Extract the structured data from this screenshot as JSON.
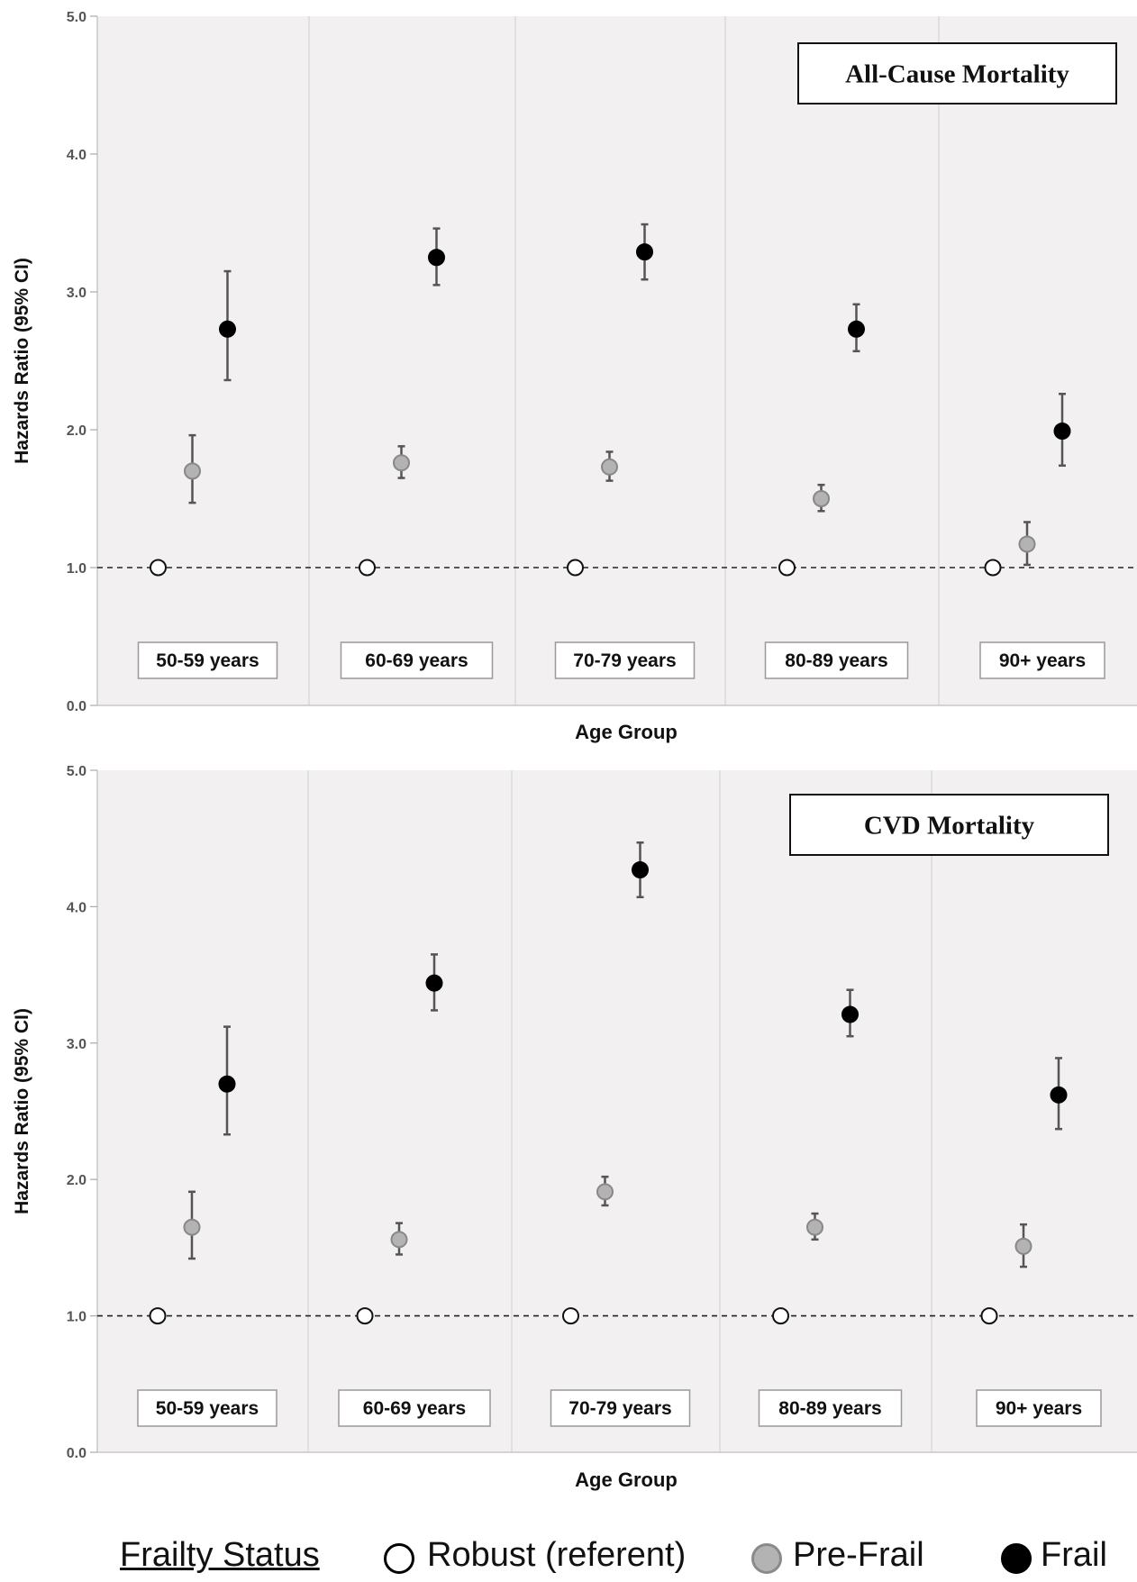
{
  "colors": {
    "plot_bg": "#f2f0f0",
    "robust": "#ffffff",
    "prefrail": "#b3b3b3",
    "frail": "#000000",
    "whisker": "#555555",
    "gridline": "#d6d6d6",
    "axis_text": "#555555"
  },
  "chart_data": [
    {
      "type": "scatter",
      "title": "All-Cause Mortality",
      "xlabel": "Age Group",
      "ylabel": "Hazards Ratio (95% CI)",
      "ylim": [
        0,
        5
      ],
      "yticks": [
        "0.0",
        "1.0",
        "2.0",
        "3.0",
        "4.0",
        "5.0"
      ],
      "reference_line": 1.0,
      "categories": [
        "50-59 years",
        "60-69 years",
        "70-79 years",
        "80-89 years",
        "90+ years"
      ],
      "series": [
        {
          "name": "Robust (referent)",
          "values": [
            1.0,
            1.0,
            1.0,
            1.0,
            1.0
          ],
          "lower": [
            1.0,
            1.0,
            1.0,
            1.0,
            1.0
          ],
          "upper": [
            1.0,
            1.0,
            1.0,
            1.0,
            1.0
          ]
        },
        {
          "name": "Pre-Frail",
          "values": [
            1.7,
            1.76,
            1.73,
            1.5,
            1.17
          ],
          "lower": [
            1.47,
            1.65,
            1.63,
            1.41,
            1.02
          ],
          "upper": [
            1.96,
            1.88,
            1.84,
            1.6,
            1.33
          ]
        },
        {
          "name": "Frail",
          "values": [
            2.73,
            3.25,
            3.29,
            2.73,
            1.99
          ],
          "lower": [
            2.36,
            3.05,
            3.09,
            2.57,
            1.74
          ],
          "upper": [
            3.15,
            3.46,
            3.49,
            2.91,
            2.26
          ]
        }
      ]
    },
    {
      "type": "scatter",
      "title": "CVD Mortality",
      "xlabel": "Age Group",
      "ylabel": "Hazards Ratio (95% CI)",
      "ylim": [
        0,
        5
      ],
      "yticks": [
        "0.0",
        "1.0",
        "2.0",
        "3.0",
        "4.0",
        "5.0"
      ],
      "reference_line": 1.0,
      "categories": [
        "50-59 years",
        "60-69 years",
        "70-79 years",
        "80-89 years",
        "90+ years"
      ],
      "series": [
        {
          "name": "Robust (referent)",
          "values": [
            1.0,
            1.0,
            1.0,
            1.0,
            1.0
          ],
          "lower": [
            1.0,
            1.0,
            1.0,
            1.0,
            1.0
          ],
          "upper": [
            1.0,
            1.0,
            1.0,
            1.0,
            1.0
          ]
        },
        {
          "name": "Pre-Frail",
          "values": [
            1.65,
            1.56,
            1.91,
            1.65,
            1.51
          ],
          "lower": [
            1.42,
            1.45,
            1.81,
            1.56,
            1.36
          ],
          "upper": [
            1.91,
            1.68,
            2.02,
            1.75,
            1.67
          ]
        },
        {
          "name": "Frail",
          "values": [
            2.7,
            3.44,
            4.27,
            3.21,
            2.62
          ],
          "lower": [
            2.33,
            3.24,
            4.07,
            3.05,
            2.37
          ],
          "upper": [
            3.12,
            3.65,
            4.47,
            3.39,
            2.89
          ]
        }
      ]
    }
  ],
  "legend": {
    "title": "Frailty Status",
    "items": [
      "Robust (referent)",
      "Pre-Frail",
      "Frail"
    ]
  }
}
